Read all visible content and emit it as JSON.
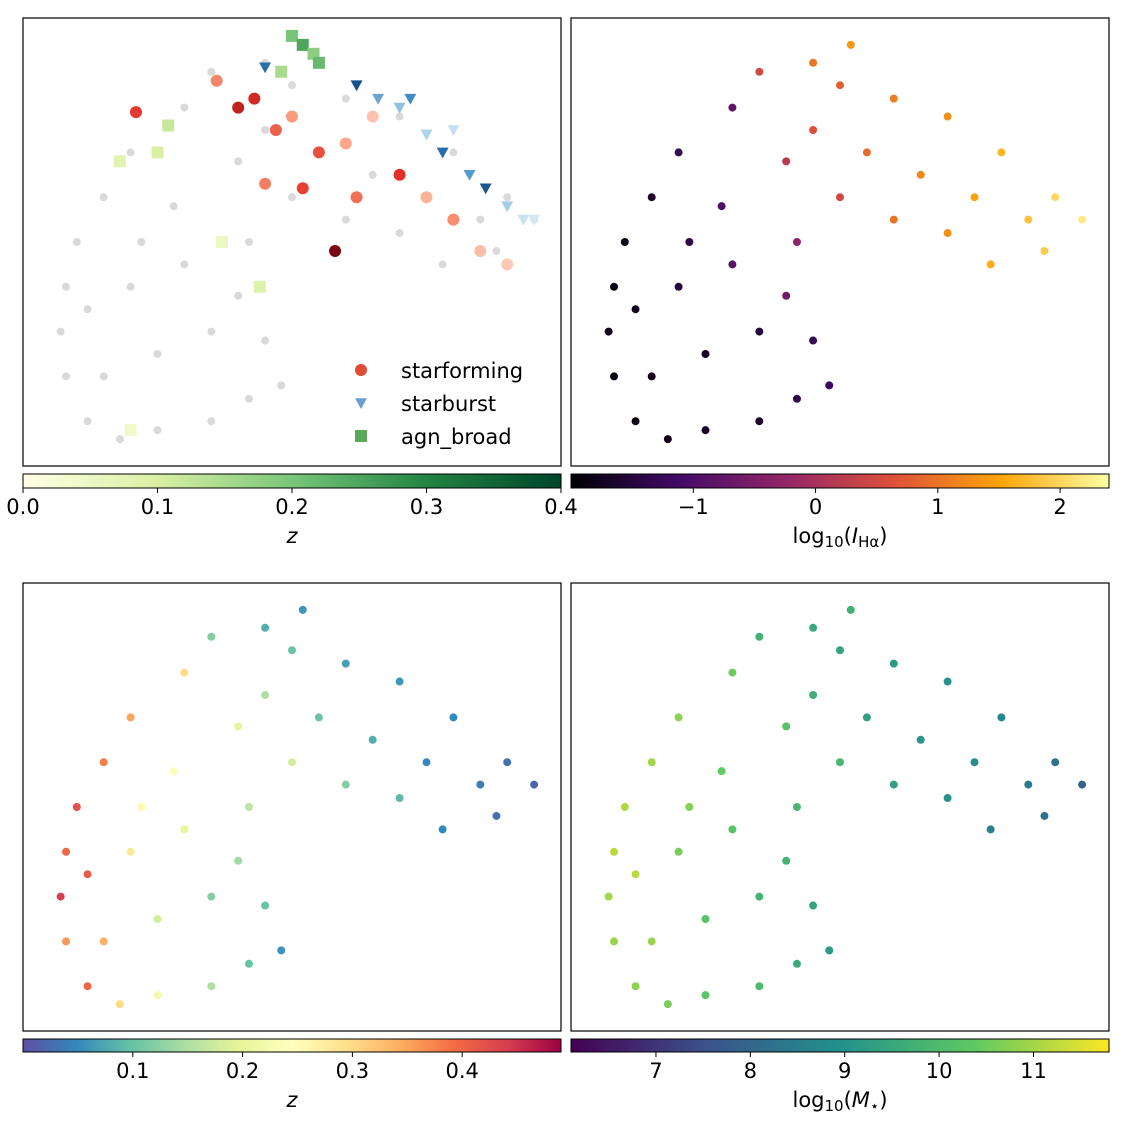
{
  "chart_data": [
    {
      "type": "scatter",
      "xlim": [
        0,
        100
      ],
      "ylim": [
        0,
        100
      ],
      "background": {
        "color": "#d9d9d9",
        "x": [
          35,
          45,
          52,
          50,
          60,
          70,
          80,
          90,
          95,
          85,
          75,
          65,
          55,
          45,
          40,
          60,
          70,
          50,
          88,
          78,
          30,
          20,
          15,
          10,
          8,
          7,
          8,
          12,
          18,
          25,
          35,
          42,
          48,
          45,
          40,
          30,
          20,
          25,
          15,
          35,
          42,
          28,
          22,
          12
        ],
        "y": [
          88,
          90,
          94,
          85,
          82,
          78,
          70,
          60,
          55,
          55,
          60,
          65,
          70,
          75,
          68,
          55,
          52,
          60,
          48,
          45,
          80,
          70,
          60,
          50,
          40,
          30,
          20,
          10,
          6,
          8,
          10,
          15,
          18,
          28,
          38,
          45,
          40,
          25,
          20,
          30,
          50,
          58,
          50,
          35
        ]
      },
      "series": [
        {
          "name": "starforming",
          "marker": "circle",
          "color": "#e34a33",
          "colormap": [
            "#fee0d2",
            "#fc9272",
            "#de2d26",
            "#67000d"
          ],
          "x": [
            21,
            36,
            40,
            43,
            47,
            50,
            55,
            60,
            62,
            65,
            70,
            75,
            80,
            85,
            90,
            58,
            52,
            45
          ],
          "y": [
            79,
            86,
            80,
            82,
            75,
            78,
            70,
            72,
            60,
            78,
            65,
            60,
            55,
            48,
            45,
            48,
            62,
            63
          ],
          "values": [
            0.25,
            0.15,
            0.3,
            0.28,
            0.2,
            0.12,
            0.22,
            0.1,
            0.18,
            0.05,
            0.26,
            0.08,
            0.14,
            0.06,
            0.04,
            0.38,
            0.24,
            0.16
          ]
        },
        {
          "name": "starburst",
          "marker": "triangle",
          "color": "#6a9fcf",
          "colormap": [
            "#deebf7",
            "#9ecae1",
            "#3182bd",
            "#08306b"
          ],
          "x": [
            45,
            62,
            66,
            70,
            72,
            75,
            78,
            80,
            83,
            86,
            90,
            93,
            95
          ],
          "y": [
            89,
            85,
            82,
            80,
            82,
            74,
            70,
            75,
            65,
            62,
            58,
            55,
            55
          ],
          "values": [
            0.3,
            0.35,
            0.2,
            0.15,
            0.25,
            0.1,
            0.3,
            0.05,
            0.22,
            0.34,
            0.12,
            0.04,
            0.02
          ]
        },
        {
          "name": "agn_broad",
          "marker": "square",
          "color": "#5aa85a",
          "colormap": [
            "#ffffe5",
            "#d9f0a3",
            "#78c679",
            "#238443",
            "#004529"
          ],
          "x": [
            50,
            52,
            54,
            55,
            48,
            27,
            25,
            18,
            37,
            44,
            20
          ],
          "y": [
            96,
            94,
            92,
            90,
            88,
            76,
            70,
            68,
            50,
            40,
            8
          ],
          "values": [
            0.2,
            0.25,
            0.18,
            0.22,
            0.15,
            0.12,
            0.1,
            0.08,
            0.05,
            0.09,
            0.04
          ]
        }
      ],
      "legend": "lower right",
      "colorbar": {
        "colormap": [
          "#ffffe5",
          "#d9f0a3",
          "#78c679",
          "#238443",
          "#004529"
        ],
        "lim": [
          0,
          0.4
        ],
        "ticks": [
          {
            "value": 0,
            "label": "0.0"
          },
          0.1,
          0.2,
          0.3,
          0.4
        ],
        "label": [
          {
            "text": "z",
            "italic": true
          }
        ]
      }
    },
    {
      "type": "scatter",
      "xlim": [
        0,
        100
      ],
      "ylim": [
        0,
        100
      ],
      "x": [
        35,
        45,
        52,
        50,
        60,
        70,
        80,
        90,
        95,
        85,
        75,
        65,
        55,
        45,
        40,
        60,
        70,
        50,
        88,
        78,
        30,
        20,
        15,
        10,
        8,
        7,
        8,
        12,
        18,
        25,
        35,
        42,
        48,
        45,
        40,
        30,
        20,
        25,
        15,
        35,
        42,
        28,
        22,
        12
      ],
      "y": [
        88,
        90,
        94,
        85,
        82,
        78,
        70,
        60,
        55,
        55,
        60,
        65,
        70,
        75,
        68,
        55,
        52,
        60,
        48,
        45,
        80,
        70,
        60,
        50,
        40,
        30,
        20,
        10,
        6,
        8,
        10,
        15,
        18,
        28,
        38,
        45,
        40,
        25,
        20,
        30,
        50,
        58,
        50,
        35
      ],
      "values": [
        0.5,
        1.0,
        1.4,
        0.8,
        1.1,
        1.3,
        1.7,
        2.0,
        2.2,
        1.8,
        1.5,
        1.2,
        0.9,
        0.6,
        0.2,
        1.0,
        1.3,
        0.5,
        1.9,
        1.6,
        -0.8,
        -1.3,
        -1.6,
        -1.8,
        -1.9,
        -1.8,
        -1.9,
        -1.9,
        -1.8,
        -1.7,
        -1.6,
        -1.4,
        -1.2,
        -1.3,
        -0.6,
        -0.9,
        -1.5,
        -1.7,
        -1.8,
        -1.5,
        -0.3,
        -1.0,
        -1.4,
        -1.8
      ],
      "colorbar": {
        "colormap": [
          "#000004",
          "#420a68",
          "#932667",
          "#dd513a",
          "#fca50a",
          "#fcffa4"
        ],
        "lim": [
          -2.0,
          2.4
        ],
        "ticks": [
          {
            "value": -1,
            "label": "−1"
          },
          0,
          1,
          2
        ],
        "label": [
          {
            "text": "log"
          },
          {
            "text": "10",
            "sub": true
          },
          {
            "text": "("
          },
          {
            "text": "I",
            "italic": true
          },
          {
            "text": "Hα",
            "sub": true
          },
          {
            "text": ")"
          }
        ]
      }
    },
    {
      "type": "scatter",
      "xlim": [
        0,
        100
      ],
      "ylim": [
        0,
        100
      ],
      "x": [
        35,
        45,
        52,
        50,
        60,
        70,
        80,
        90,
        95,
        85,
        75,
        65,
        55,
        45,
        40,
        60,
        70,
        50,
        88,
        78,
        30,
        20,
        15,
        10,
        8,
        7,
        8,
        12,
        18,
        25,
        35,
        42,
        48,
        45,
        40,
        30,
        20,
        25,
        15,
        35,
        42,
        28,
        22,
        12
      ],
      "y": [
        88,
        90,
        94,
        85,
        82,
        78,
        70,
        60,
        55,
        55,
        60,
        65,
        70,
        75,
        68,
        55,
        52,
        60,
        48,
        45,
        80,
        70,
        60,
        50,
        40,
        30,
        20,
        10,
        6,
        8,
        10,
        15,
        18,
        28,
        38,
        45,
        40,
        25,
        20,
        30,
        50,
        58,
        50,
        35
      ],
      "values": [
        0.12,
        0.08,
        0.06,
        0.1,
        0.07,
        0.06,
        0.05,
        0.03,
        0.02,
        0.04,
        0.05,
        0.08,
        0.1,
        0.15,
        0.2,
        0.12,
        0.09,
        0.18,
        0.03,
        0.05,
        0.3,
        0.35,
        0.38,
        0.42,
        0.4,
        0.44,
        0.36,
        0.4,
        0.3,
        0.22,
        0.15,
        0.1,
        0.06,
        0.1,
        0.14,
        0.2,
        0.28,
        0.18,
        0.34,
        0.12,
        0.16,
        0.25,
        0.26,
        0.41
      ],
      "colorbar": {
        "colormap": [
          "#5e4fa2",
          "#3288bd",
          "#66c2a5",
          "#abdda4",
          "#e6f598",
          "#ffffbf",
          "#fee08b",
          "#fdae61",
          "#f46d43",
          "#d53e4f",
          "#9e0142"
        ],
        "lim": [
          0,
          0.49
        ],
        "ticks": [
          0.1,
          0.2,
          0.3,
          0.4
        ],
        "label": [
          {
            "text": "z",
            "italic": true
          }
        ]
      }
    },
    {
      "type": "scatter",
      "xlim": [
        0,
        100
      ],
      "ylim": [
        0,
        100
      ],
      "x": [
        35,
        45,
        52,
        50,
        60,
        70,
        80,
        90,
        95,
        85,
        75,
        65,
        55,
        45,
        40,
        60,
        70,
        50,
        88,
        78,
        30,
        20,
        15,
        10,
        8,
        7,
        8,
        12,
        18,
        25,
        35,
        42,
        48,
        45,
        40,
        30,
        20,
        25,
        15,
        35,
        42,
        28,
        22,
        12
      ],
      "y": [
        88,
        90,
        94,
        85,
        82,
        78,
        70,
        60,
        55,
        55,
        60,
        65,
        70,
        75,
        68,
        55,
        52,
        60,
        48,
        45,
        80,
        70,
        60,
        50,
        40,
        30,
        20,
        10,
        6,
        8,
        10,
        15,
        18,
        28,
        38,
        45,
        40,
        25,
        20,
        30,
        50,
        58,
        50,
        35
      ],
      "values": [
        9.8,
        9.5,
        9.7,
        9.4,
        9.2,
        9.0,
        8.7,
        8.3,
        7.9,
        8.5,
        8.9,
        9.1,
        9.3,
        9.7,
        10.2,
        9.3,
        9.0,
        9.9,
        8.2,
        8.6,
        10.5,
        10.8,
        11.0,
        11.1,
        11.2,
        11.0,
        10.9,
        10.8,
        10.6,
        10.3,
        10.0,
        9.6,
        9.2,
        9.4,
        9.8,
        10.2,
        10.6,
        10.2,
        10.9,
        9.8,
        9.9,
        10.4,
        10.7,
        11.2
      ],
      "colorbar": {
        "colormap": [
          "#440154",
          "#3b528b",
          "#21918c",
          "#5ec962",
          "#fde725"
        ],
        "lim": [
          6.1,
          11.8
        ],
        "ticks": [
          7,
          8,
          9,
          10,
          11
        ],
        "label": [
          {
            "text": "log"
          },
          {
            "text": "10",
            "sub": true
          },
          {
            "text": "("
          },
          {
            "text": "M",
            "italic": true
          },
          {
            "text": "⋆",
            "sub": true
          },
          {
            "text": ")"
          }
        ]
      }
    }
  ]
}
